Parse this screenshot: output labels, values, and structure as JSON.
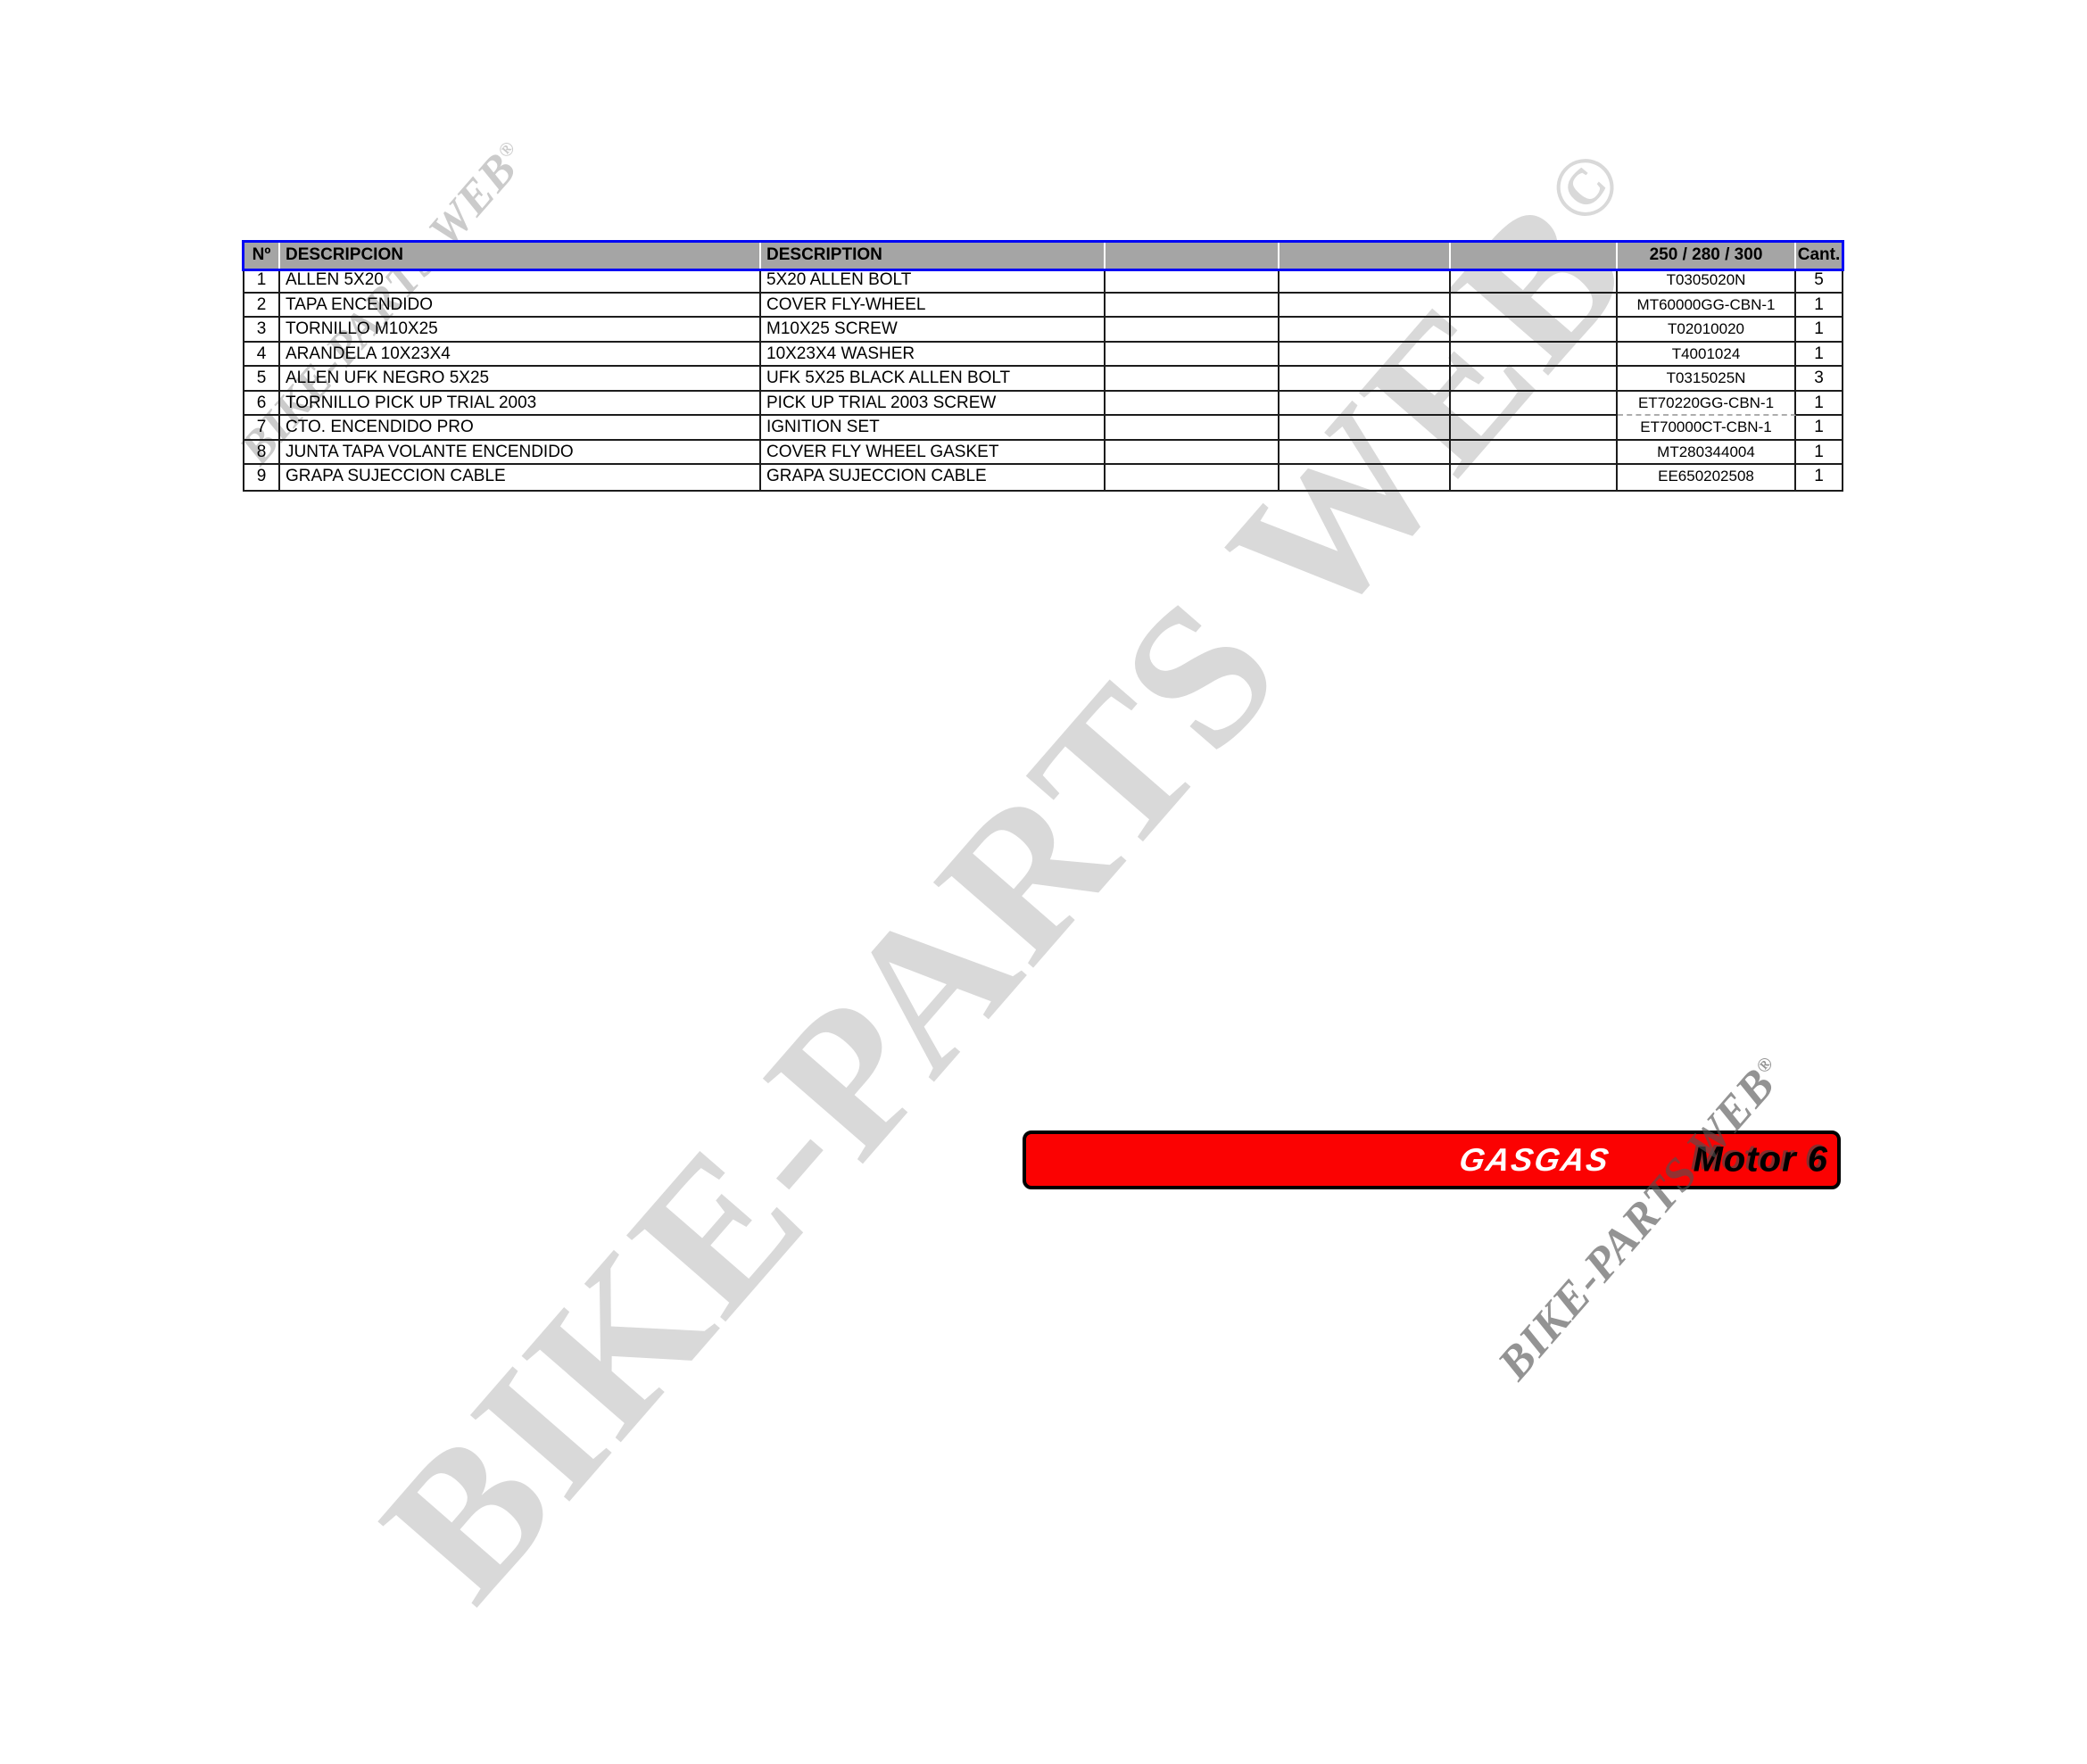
{
  "colors": {
    "accent_red": "#fb0202",
    "header_gray": "#a5a5a5",
    "outline_blue": "#0007f5",
    "grid": "#1c1c1c",
    "wm_light": "#d9d9d9",
    "wm_faint": "#cbcbcb"
  },
  "watermarks": {
    "big_text": "BIKE-PARTS WEB",
    "big_symbol": "©",
    "small_text": "BIKE-PARTS WEB",
    "small_symbol": "®"
  },
  "table": {
    "headers": {
      "no": "Nº",
      "descripcion": "DESCRIPCION",
      "description": "DESCRIPTION",
      "models": "250 / 280 / 300",
      "qty": "Cant."
    },
    "rows": [
      {
        "no": "1",
        "descripcion": "ALLEN 5X20",
        "description": "5X20 ALLEN BOLT",
        "part": "T0305020N",
        "qty": "5"
      },
      {
        "no": "2",
        "descripcion": "TAPA ENCENDIDO",
        "description": "COVER FLY-WHEEL",
        "part": "MT60000GG-CBN-1",
        "qty": "1"
      },
      {
        "no": "3",
        "descripcion": "TORNILLO M10X25",
        "description": "M10X25 SCREW",
        "part": "T02010020",
        "qty": "1"
      },
      {
        "no": "4",
        "descripcion": "ARANDELA 10X23X4",
        "description": "10X23X4 WASHER",
        "part": "T4001024",
        "qty": "1"
      },
      {
        "no": "5",
        "descripcion": "ALLEN UFK NEGRO 5X25",
        "description": "UFK 5X25 BLACK ALLEN BOLT",
        "part": "T0315025N",
        "qty": "3"
      },
      {
        "no": "6",
        "descripcion": "TORNILLO PICK UP TRIAL 2003",
        "description": "PICK UP TRIAL 2003 SCREW",
        "part": "ET70220GG-CBN-1",
        "qty": "1"
      },
      {
        "no": "7",
        "descripcion": "CTO. ENCENDIDO PRO",
        "description": "IGNITION SET",
        "part": "ET70000CT-CBN-1",
        "qty": "1"
      },
      {
        "no": "8",
        "descripcion": "JUNTA TAPA VOLANTE ENCENDIDO",
        "description": "COVER FLY WHEEL GASKET",
        "part": "MT280344004",
        "qty": "1"
      },
      {
        "no": "9",
        "descripcion": "GRAPA SUJECCION CABLE",
        "description": "GRAPA SUJECCION CABLE",
        "part": "EE650202508",
        "qty": "1"
      }
    ]
  },
  "banner": {
    "brand": "GASGAS",
    "model": "Motor 6"
  }
}
